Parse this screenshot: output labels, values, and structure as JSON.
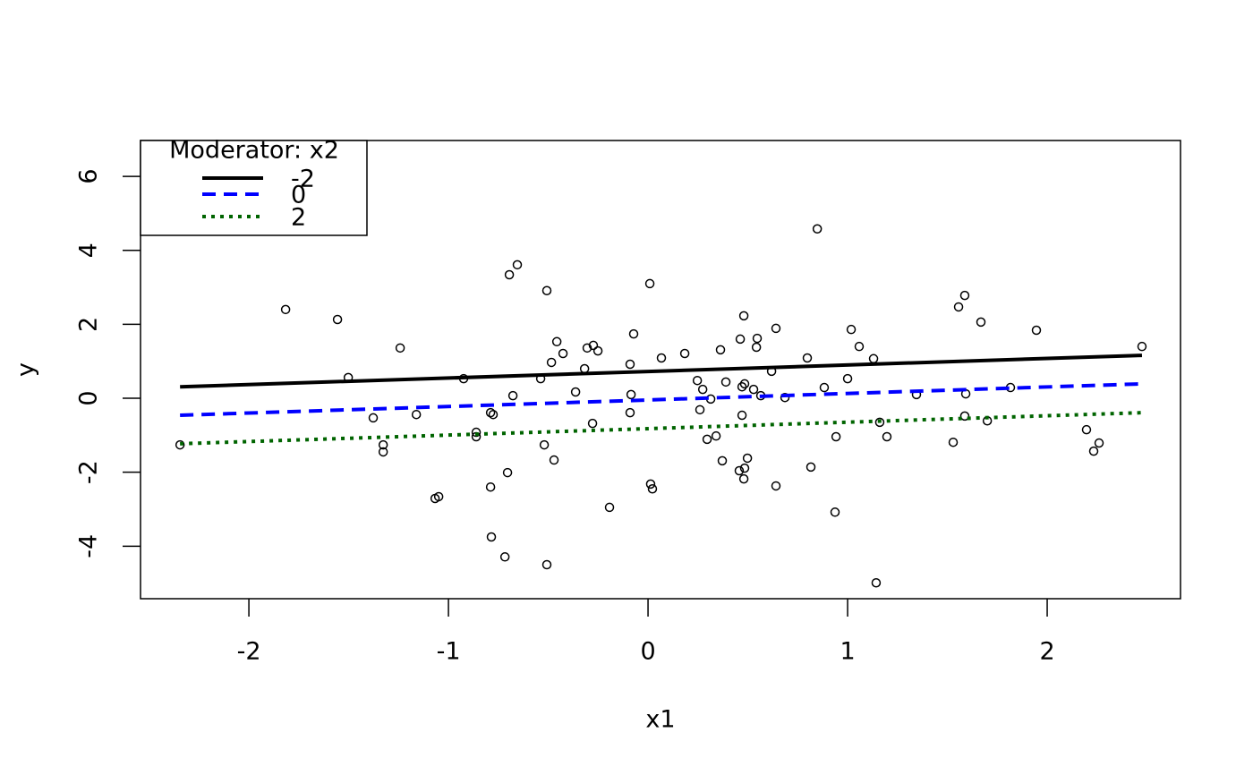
{
  "chart_data": {
    "type": "scatter",
    "x_label": "x1",
    "y_label": "y",
    "xlim": [
      -2.543,
      2.668
    ],
    "ylim": [
      -5.42,
      6.97
    ],
    "xticks": [
      -2,
      -1,
      0,
      1,
      2
    ],
    "yticks": [
      -4,
      -2,
      0,
      2,
      4,
      6
    ],
    "points": {
      "x": [
        -2.345,
        -1.816,
        -1.556,
        -1.502,
        -1.377,
        -1.327,
        -1.327,
        -1.242,
        -1.161,
        -1.067,
        -1.049,
        -0.924,
        -0.861,
        -0.861,
        -0.789,
        -0.776,
        -0.789,
        -0.785,
        -0.717,
        -0.704,
        -0.695,
        -0.655,
        -0.677,
        -0.538,
        -0.52,
        -0.507,
        -0.507,
        -0.484,
        -0.471,
        -0.457,
        -0.426,
        -0.363,
        -0.318,
        -0.305,
        -0.278,
        -0.274,
        -0.251,
        -0.193,
        -0.09,
        -0.085,
        -0.09,
        -0.072,
        0.009,
        0.013,
        0.022,
        0.067,
        0.184,
        0.247,
        0.26,
        0.274,
        0.296,
        0.314,
        0.341,
        0.363,
        0.372,
        0.39,
        0.457,
        0.462,
        0.471,
        0.471,
        0.48,
        0.484,
        0.484,
        0.48,
        0.498,
        0.529,
        0.547,
        0.543,
        0.565,
        0.619,
        0.641,
        0.641,
        0.686,
        0.798,
        0.816,
        0.848,
        0.883,
        0.937,
        0.942,
        1.0,
        1.018,
        1.058,
        1.13,
        1.143,
        1.161,
        1.197,
        1.345,
        1.529,
        1.556,
        1.587,
        1.587,
        1.592,
        1.668,
        1.7,
        1.816,
        1.946,
        2.197,
        2.233,
        2.26,
        2.475
      ],
      "y": [
        -1.26,
        2.4,
        2.13,
        0.56,
        -0.53,
        -1.26,
        -1.45,
        1.36,
        -0.44,
        -2.71,
        -2.66,
        0.53,
        -0.92,
        -1.04,
        -0.39,
        -0.44,
        -2.4,
        -3.75,
        -4.29,
        -2.01,
        3.34,
        3.61,
        0.07,
        0.53,
        -1.26,
        2.91,
        -4.5,
        0.97,
        -1.67,
        1.53,
        1.21,
        0.17,
        0.8,
        1.36,
        -0.68,
        1.43,
        1.28,
        -2.95,
        0.92,
        0.1,
        -0.39,
        1.74,
        3.1,
        -2.32,
        -2.45,
        1.09,
        1.21,
        0.48,
        -0.31,
        0.24,
        -1.11,
        -0.02,
        -1.02,
        1.31,
        -1.69,
        0.44,
        -1.96,
        1.6,
        -0.46,
        0.31,
        2.23,
        0.39,
        -1.89,
        -2.18,
        -1.62,
        0.24,
        1.62,
        1.38,
        0.07,
        0.73,
        1.89,
        -2.37,
        0.02,
        1.09,
        -1.86,
        4.58,
        0.29,
        -3.08,
        -1.04,
        0.53,
        1.86,
        1.4,
        1.07,
        -4.99,
        -0.65,
        -1.04,
        0.1,
        -1.19,
        2.47,
        2.78,
        -0.48,
        0.12,
        2.06,
        -0.61,
        0.29,
        1.84,
        -0.85,
        -1.43,
        -1.21,
        1.4
      ]
    },
    "legend_title": "Moderator: x2",
    "legend_position": "top-left",
    "lines": [
      {
        "name": "-2",
        "color": "#000000",
        "dash": "solid",
        "x": [
          -2.345,
          2.475
        ],
        "values": [
          0.31,
          1.16
        ]
      },
      {
        "name": "0",
        "color": "#0000ff",
        "dash": "dashed",
        "x": [
          -2.345,
          2.475
        ],
        "values": [
          -0.46,
          0.39
        ]
      },
      {
        "name": "2",
        "color": "#006400",
        "dash": "dotted",
        "x": [
          -2.345,
          2.475
        ],
        "values": [
          -1.23,
          -0.39
        ]
      }
    ]
  }
}
